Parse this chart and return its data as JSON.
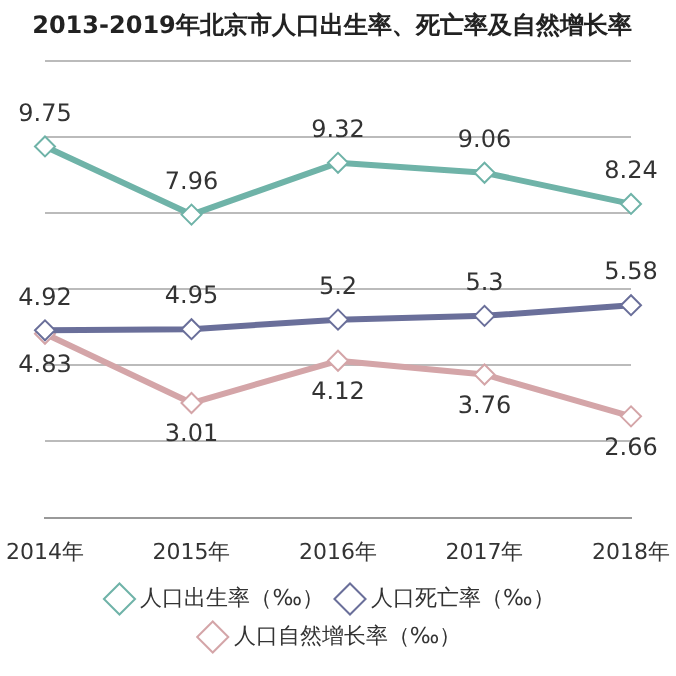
{
  "chart_data": {
    "type": "line",
    "title": "2013-2019年北京市人口出生率、死亡率及自然增长率",
    "categories": [
      "2014年",
      "2015年",
      "2016年",
      "2017年",
      "2018年"
    ],
    "series": [
      {
        "name": "人口出生率（‰）",
        "color": "#6fb3a8",
        "values": [
          9.75,
          7.96,
          9.32,
          9.06,
          8.24
        ]
      },
      {
        "name": "人口死亡率（‰）",
        "color": "#6a6f9a",
        "values": [
          4.92,
          4.95,
          5.2,
          5.3,
          5.58
        ]
      },
      {
        "name": "人口自然增长率（‰）",
        "color": "#d4a5a8",
        "values": [
          4.83,
          3.01,
          4.12,
          3.76,
          2.66
        ]
      }
    ],
    "ylim": [
      0,
      12
    ],
    "yticks": [
      {
        "value": 0,
        "label": null
      },
      {
        "value": 2,
        "label": null
      },
      {
        "value": 4,
        "label": null
      },
      {
        "value": 6,
        "label": null
      },
      {
        "value": 8,
        "label": null
      },
      {
        "value": 10,
        "label": null
      },
      {
        "value": 12,
        "label": null
      }
    ],
    "tick_labels": "x",
    "grid": "y",
    "legend": "bottom",
    "marker": "diamond",
    "line_style": "solid",
    "data_labels": true
  }
}
